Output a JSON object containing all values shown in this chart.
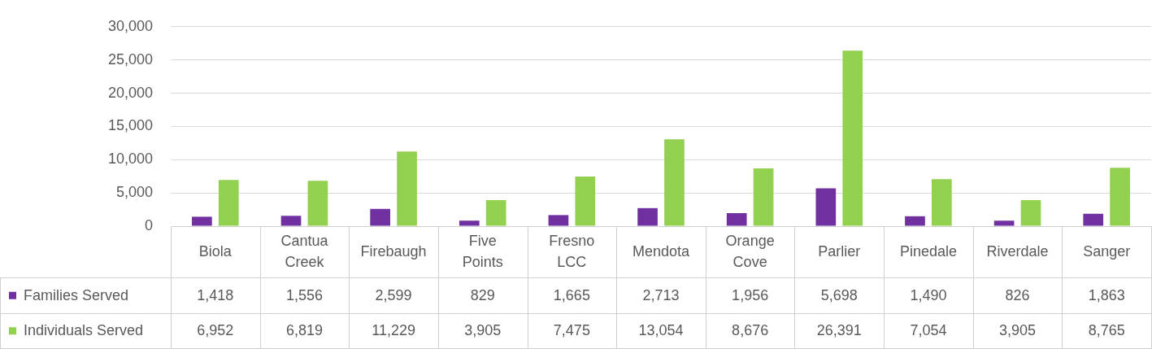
{
  "chart_data": {
    "type": "bar",
    "categories": [
      "Biola",
      "Cantua Creek",
      "Firebaugh",
      "Five Points",
      "Fresno LCC",
      "Mendota",
      "Orange Cove",
      "Parlier",
      "Pinedale",
      "Riverdale",
      "Sanger"
    ],
    "series": [
      {
        "name": "Families Served",
        "color": "#7030a0",
        "values": [
          1418,
          1556,
          2599,
          829,
          1665,
          2713,
          1956,
          5698,
          1490,
          826,
          1863
        ],
        "value_labels": [
          "1,418",
          "1,556",
          "2,599",
          "829",
          "1,665",
          "2,713",
          "1,956",
          "5,698",
          "1,490",
          "826",
          "1,863"
        ]
      },
      {
        "name": "Individuals Served",
        "color": "#92d050",
        "values": [
          6952,
          6819,
          11229,
          3905,
          7475,
          13054,
          8676,
          26391,
          7054,
          3905,
          8765
        ],
        "value_labels": [
          "6,952",
          "6,819",
          "11,229",
          "3,905",
          "7,475",
          "13,054",
          "8,676",
          "26,391",
          "7,054",
          "3,905",
          "8,765"
        ]
      }
    ],
    "ylim": [
      0,
      30000
    ],
    "yticks": [
      {
        "value": 0,
        "label": "0"
      },
      {
        "value": 5000,
        "label": "5,000"
      },
      {
        "value": 10000,
        "label": "10,000"
      },
      {
        "value": 15000,
        "label": "15,000"
      },
      {
        "value": 20000,
        "label": "20,000"
      },
      {
        "value": 25000,
        "label": "25,000"
      },
      {
        "value": 30000,
        "label": "30,000"
      }
    ],
    "grid": "y",
    "legend": "bottom"
  }
}
